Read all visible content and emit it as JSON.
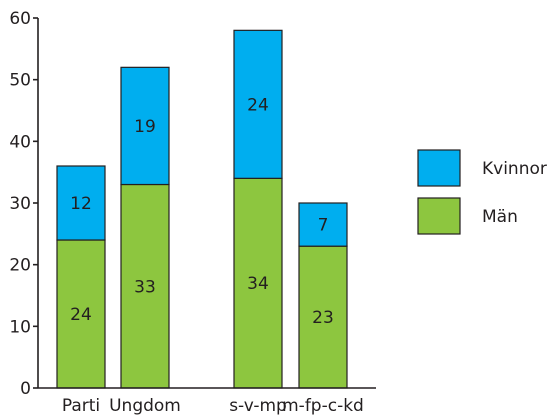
{
  "chart_data": {
    "type": "bar",
    "stacked": true,
    "categories": [
      "Parti",
      "Ungdom",
      "s-v-mp",
      "m-fp-c-kd"
    ],
    "series": [
      {
        "name": "Män",
        "values": [
          24,
          33,
          34,
          23
        ],
        "color": "#8dc63f"
      },
      {
        "name": "Kvinnor",
        "values": [
          12,
          19,
          24,
          7
        ],
        "color": "#00aeef"
      }
    ],
    "ylim": [
      0,
      60
    ],
    "yticks": [
      0,
      10,
      20,
      30,
      40,
      50,
      60
    ],
    "grid": false,
    "legend_position": "right",
    "legend_order": [
      "Kvinnor",
      "Män"
    ]
  }
}
